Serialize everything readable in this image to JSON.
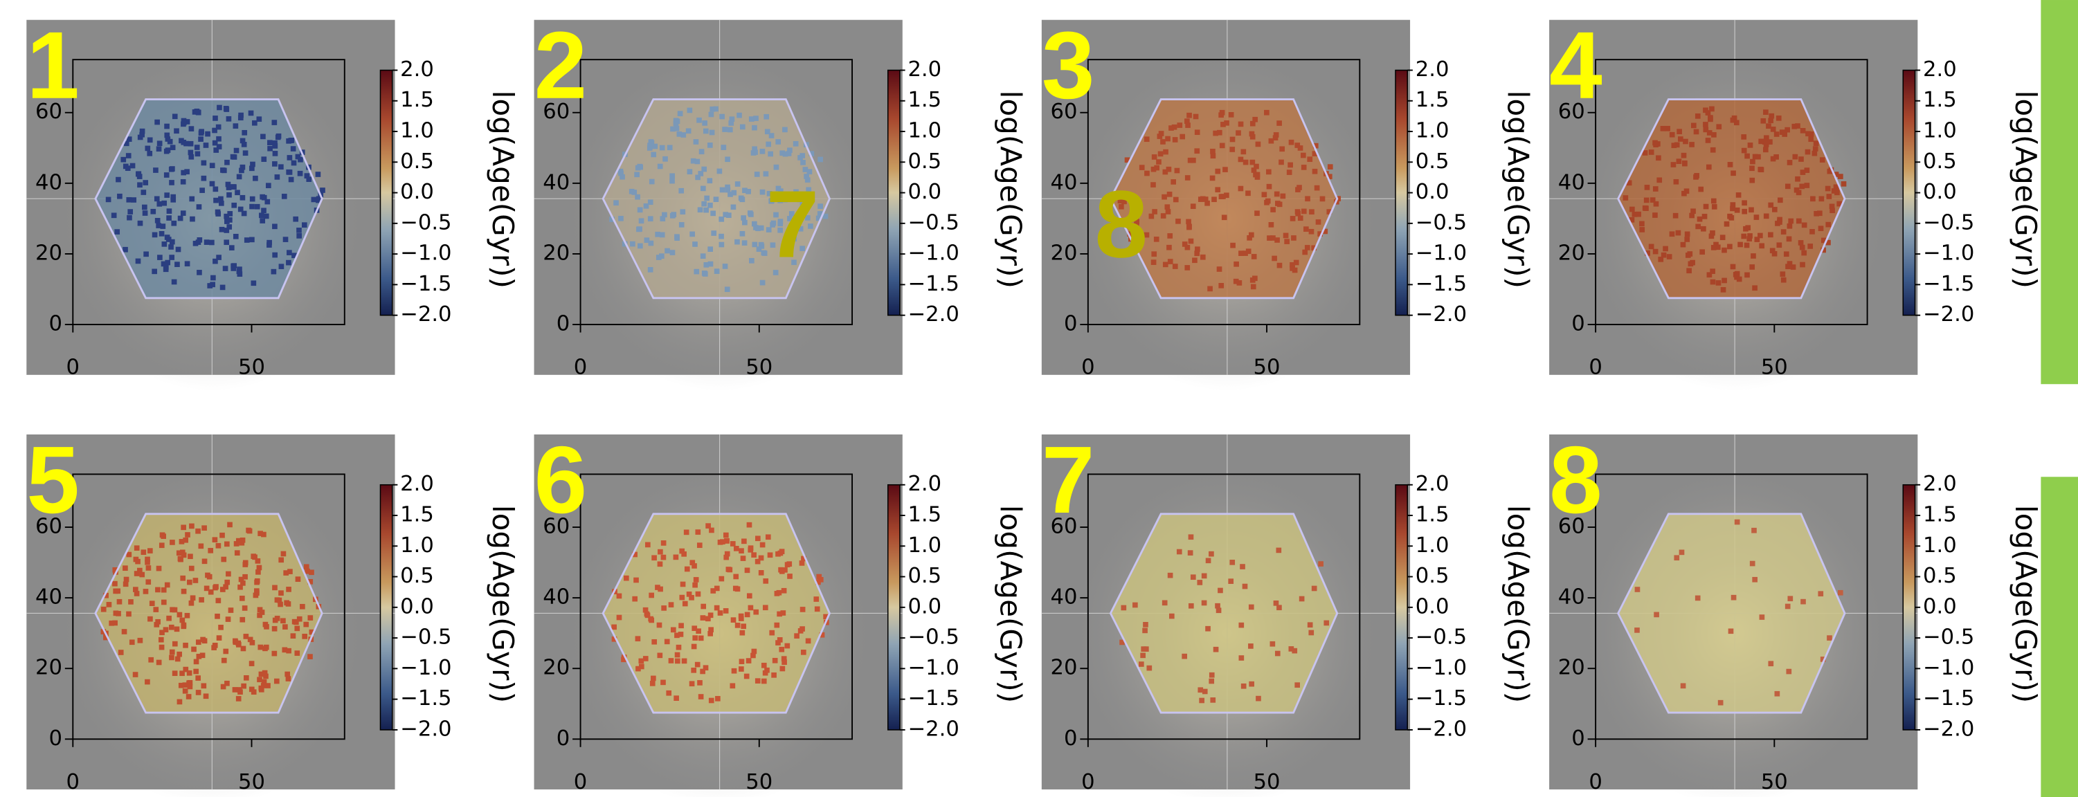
{
  "xticks": [
    0,
    50
  ],
  "yticks": [
    0,
    20,
    40,
    60
  ],
  "xlim": [
    0,
    76
  ],
  "ylim": [
    0,
    75
  ],
  "colorbar": {
    "label": "log(Age(Gyr))",
    "lim": [
      -2,
      2
    ],
    "ticks": [
      {
        "value": 2,
        "label": "2.0"
      },
      {
        "value": 1.5,
        "label": "1.5"
      },
      {
        "value": 1,
        "label": "1.0"
      },
      {
        "value": 0.5,
        "label": "0.5"
      },
      {
        "value": 0,
        "label": "0.0"
      },
      {
        "value": -0.5,
        "label": "−0.5"
      },
      {
        "value": -1,
        "label": "−1.0"
      },
      {
        "value": -1.5,
        "label": "−1.5"
      },
      {
        "value": -2,
        "label": "−2.0"
      }
    ]
  },
  "panels": [
    {
      "label": "1"
    },
    {
      "label": "2",
      "overlay": "7"
    },
    {
      "label": "3",
      "overlay": "8"
    },
    {
      "label": "4"
    },
    {
      "label": "5"
    },
    {
      "label": "6"
    },
    {
      "label": "7"
    },
    {
      "label": "8"
    }
  ]
}
